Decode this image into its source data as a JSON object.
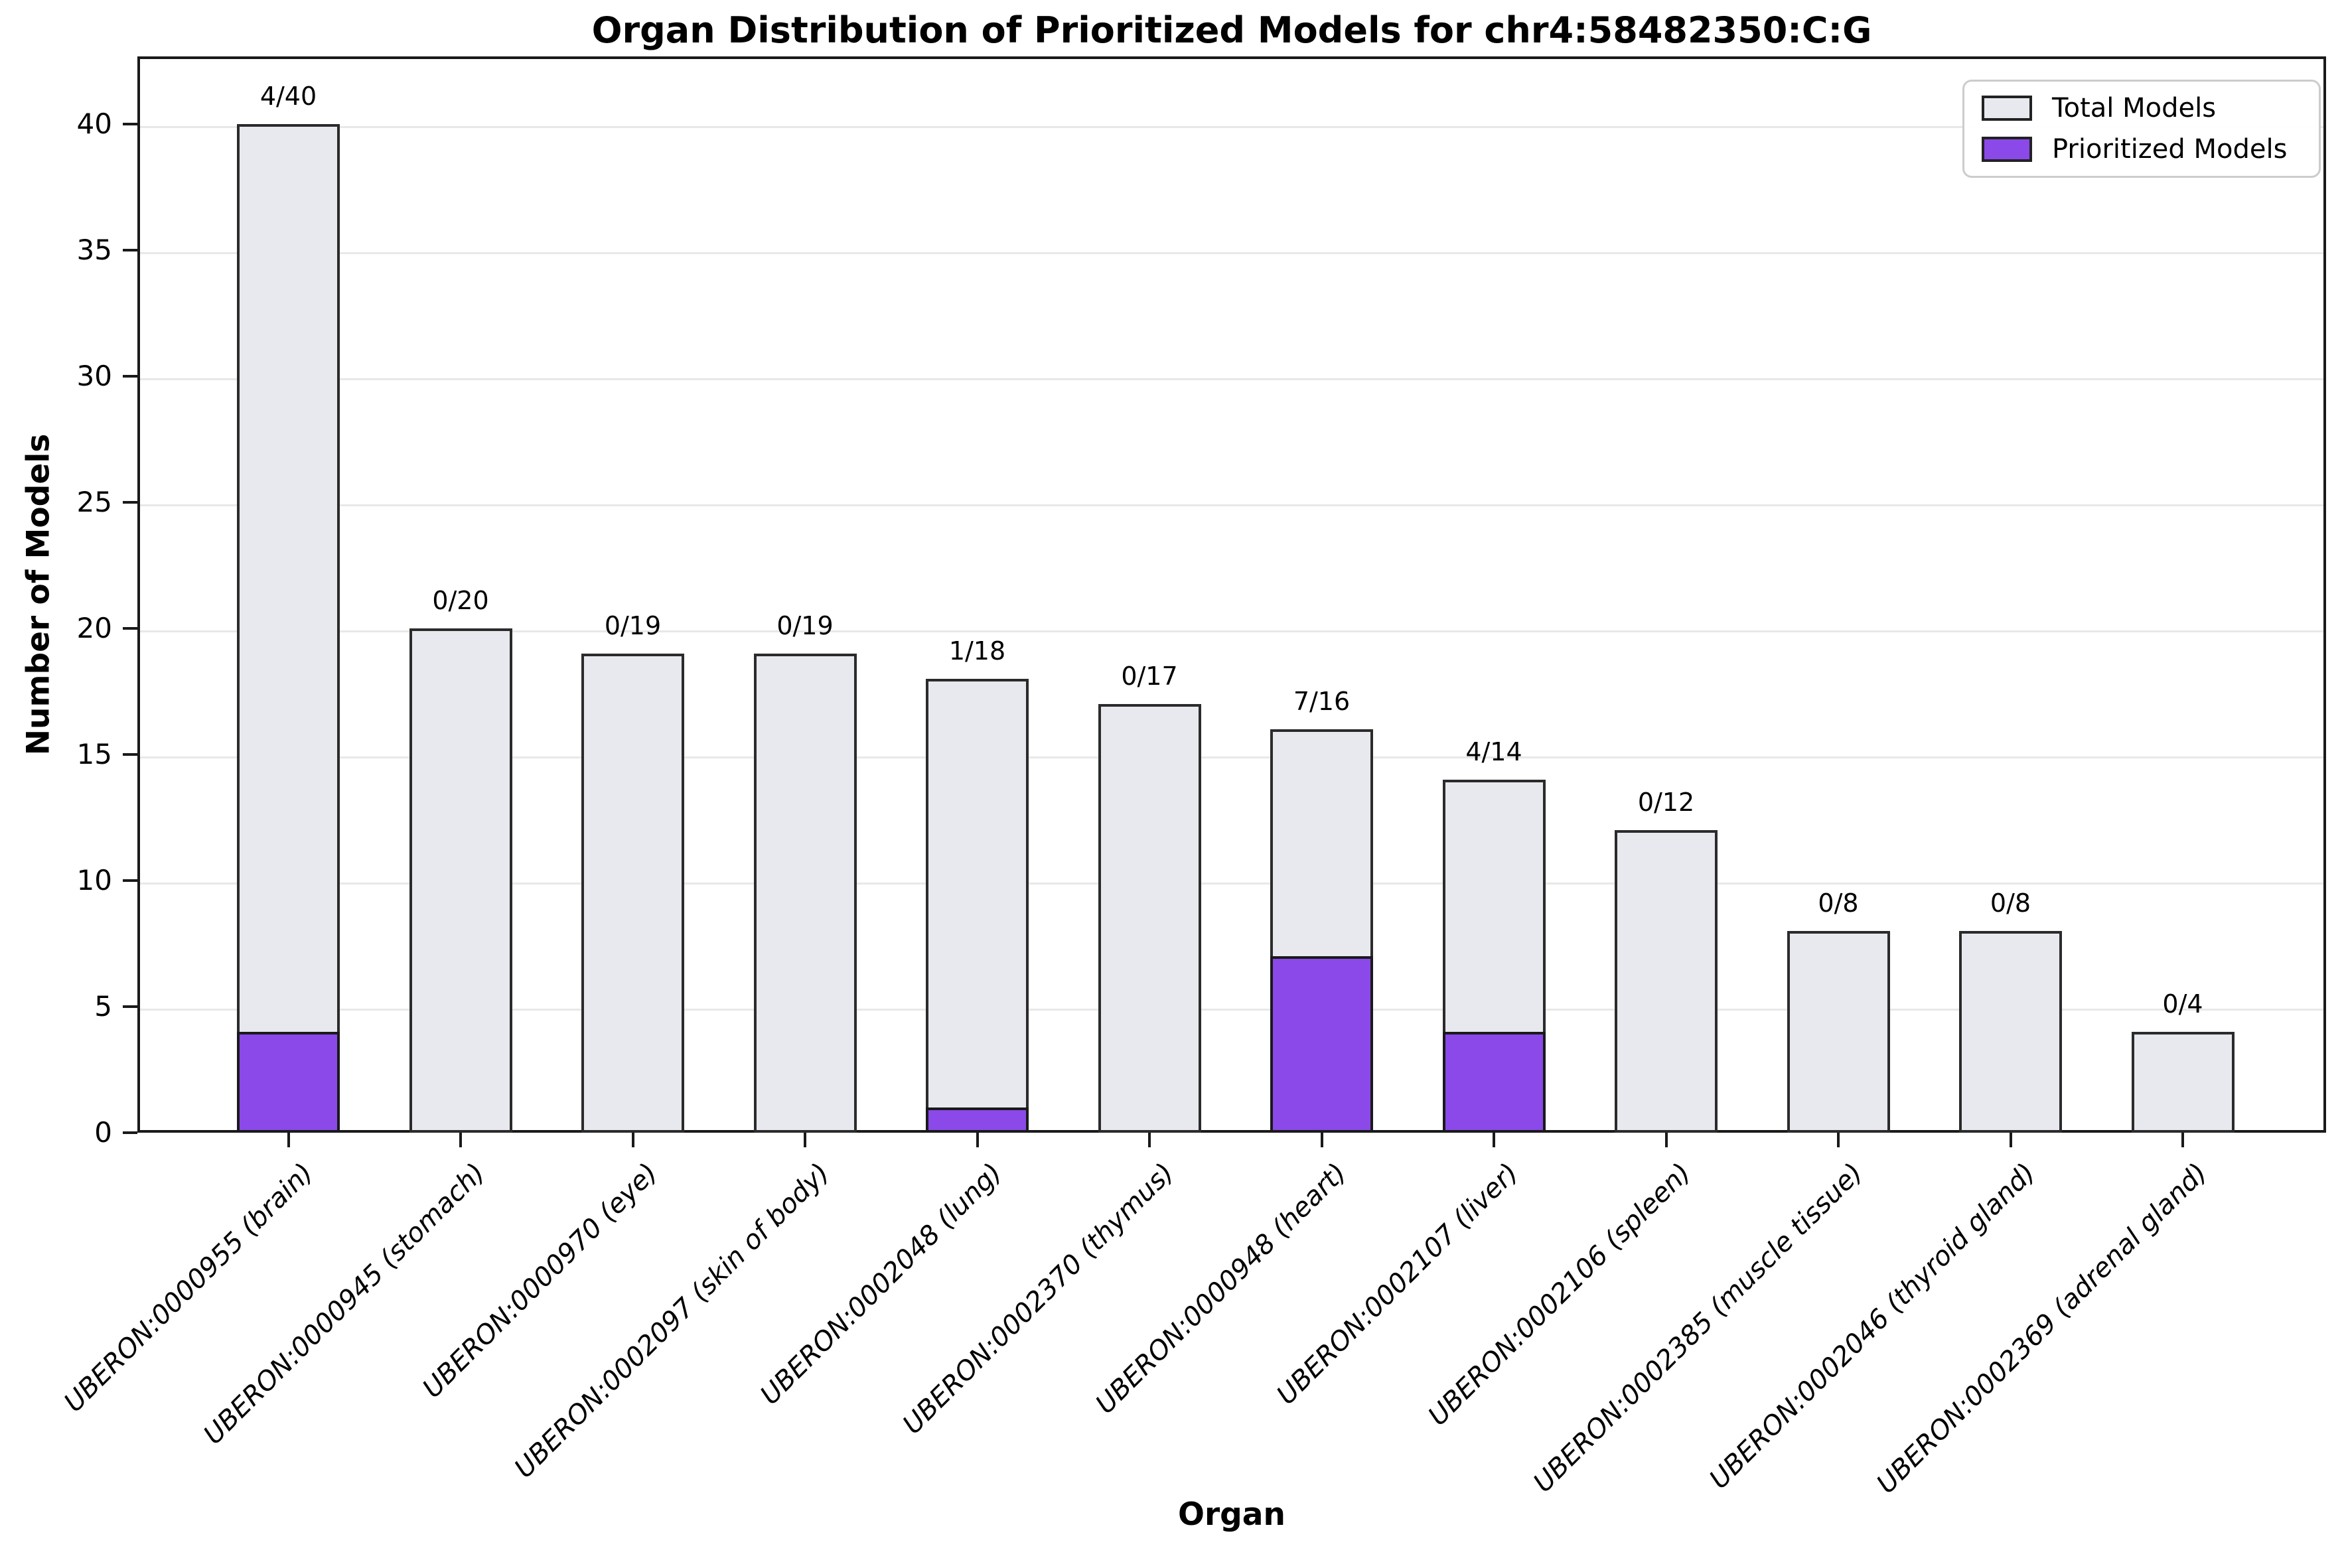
{
  "chart_data": {
    "type": "bar",
    "title": "Organ Distribution of Prioritized Models for chr4:58482350:C:G",
    "xlabel": "Organ",
    "ylabel": "Number of Models",
    "categories": [
      "UBERON:0000955 (brain)",
      "UBERON:0000945 (stomach)",
      "UBERON:0000970 (eye)",
      "UBERON:0002097 (skin of body)",
      "UBERON:0002048 (lung)",
      "UBERON:0002370 (thymus)",
      "UBERON:0000948 (heart)",
      "UBERON:0002107 (liver)",
      "UBERON:0002106 (spleen)",
      "UBERON:0002385 (muscle tissue)",
      "UBERON:0002046 (thyroid gland)",
      "UBERON:0002369 (adrenal gland)"
    ],
    "series": [
      {
        "name": "Total Models",
        "color": "#e8e9ee",
        "values": [
          40,
          20,
          19,
          19,
          18,
          17,
          16,
          14,
          12,
          8,
          8,
          4
        ]
      },
      {
        "name": "Prioritized Models",
        "color": "#8a49e8",
        "values": [
          4,
          0,
          0,
          0,
          1,
          0,
          7,
          4,
          0,
          0,
          0,
          0
        ]
      }
    ],
    "annotations": [
      "4/40",
      "0/20",
      "0/19",
      "0/19",
      "1/18",
      "0/17",
      "7/16",
      "4/14",
      "0/12",
      "0/8",
      "0/8",
      "0/4"
    ],
    "yticks": [
      0,
      5,
      10,
      15,
      20,
      25,
      30,
      35,
      40
    ],
    "ylim": [
      0,
      42.7
    ],
    "grid": true,
    "legend_position": "upper right",
    "bar_edge_color": "#2b2b2b",
    "grid_color": "#e8e8e8"
  }
}
